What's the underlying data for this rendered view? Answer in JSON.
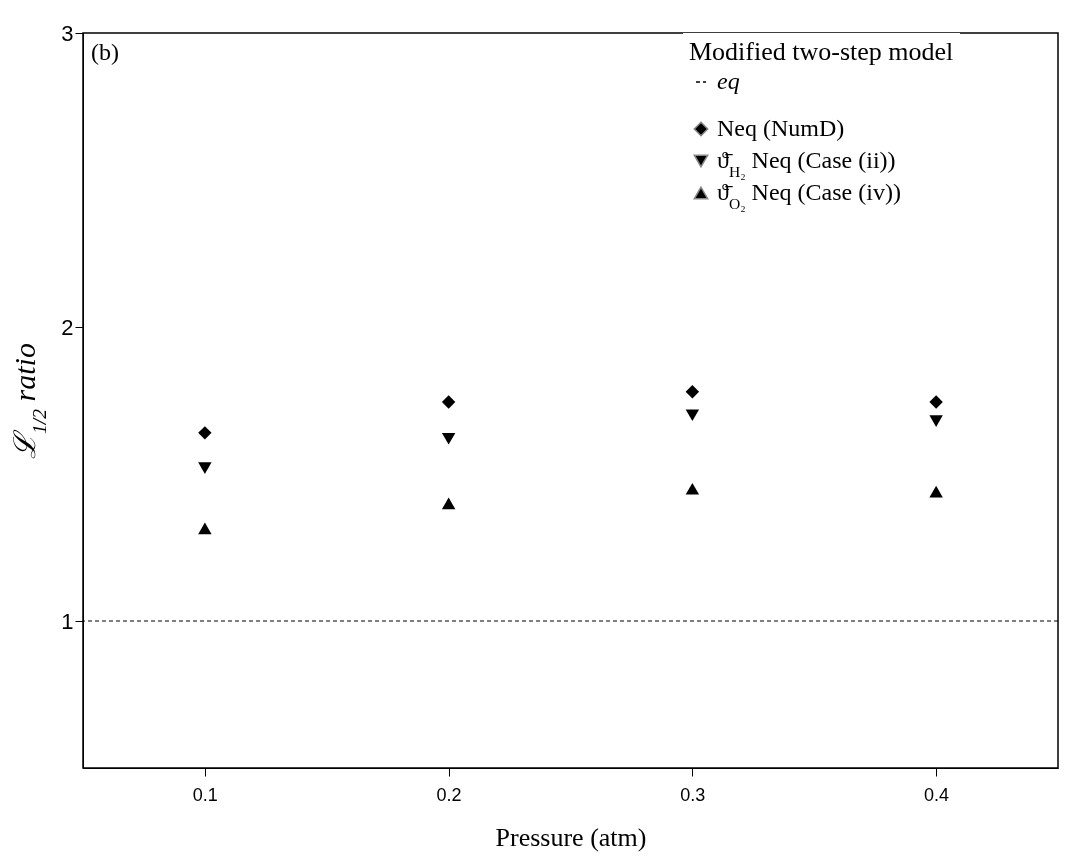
{
  "chart_data": {
    "type": "scatter",
    "xlabel": "Pressure (atm)",
    "ylabel": "ℒ$_{1/2}$ ratio",
    "legend_title": "Modified two-step model",
    "legend": "top right",
    "annotations": [
      "(b)"
    ],
    "x": [
      0.1,
      0.2,
      0.3,
      0.4
    ],
    "xlim": [
      0.05,
      0.45
    ],
    "xticks": [
      0.1,
      0.2,
      0.3,
      0.4
    ],
    "ylim": [
      0.5,
      3
    ],
    "yticks": [
      {
        "value": 1,
        "label": "1"
      },
      {
        "value": 2,
        "label": "2"
      },
      {
        "value": 3,
        "label": "3"
      }
    ],
    "grid": false,
    "ref_lines": [
      {
        "axis": "y",
        "value": 1,
        "label": "eq",
        "line_style": "dashed",
        "color": "#000000"
      }
    ],
    "series": [
      {
        "name": "Neq (NumD)",
        "color": "#000000",
        "marker": "diamond",
        "values": [
          1.64,
          1.745,
          1.78,
          1.745
        ]
      },
      {
        "name": "ϑ̄$_{H₂}$ Neq (Case (ii))",
        "color": "#000000",
        "marker": "triangle-down",
        "values": [
          1.52,
          1.62,
          1.7,
          1.68
        ]
      },
      {
        "name": "ϑ̄$_{O₂}$ Neq (Case (iv))",
        "color": "#000000",
        "marker": "triangle-up",
        "values": [
          1.315,
          1.4,
          1.45,
          1.44
        ]
      }
    ]
  }
}
